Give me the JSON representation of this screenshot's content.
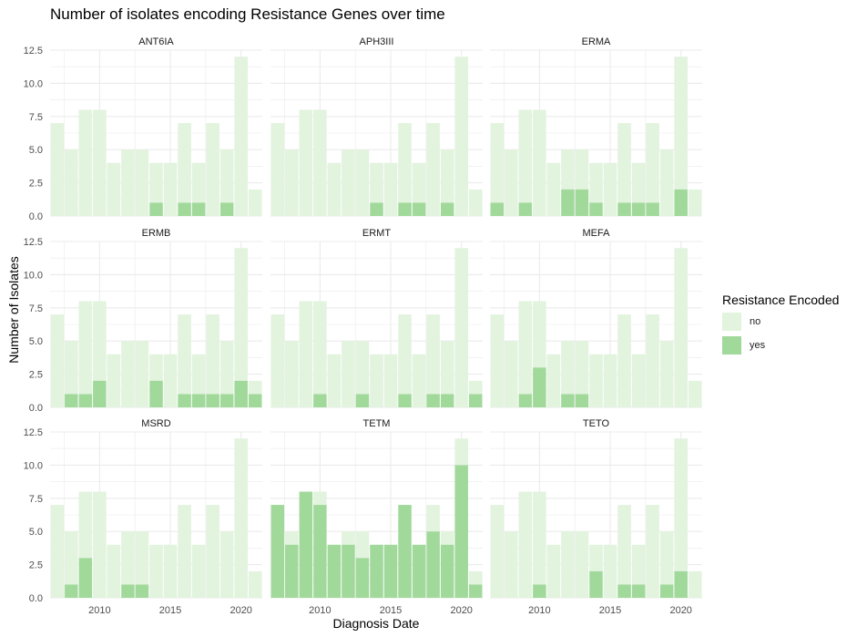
{
  "chart_data": {
    "type": "bar",
    "stacked": true,
    "title": "Number of isolates encoding Resistance Genes over time",
    "xlabel": "Diagnosis Date",
    "ylabel": "Number of Isolates",
    "legend": {
      "title": "Resistance Encoded",
      "entries": [
        "no",
        "yes"
      ],
      "position": "right"
    },
    "colors": {
      "no": "#e2f3de",
      "yes": "#a1d99b",
      "grid": "#ebebeb"
    },
    "x_years": [
      2007,
      2008,
      2009,
      2010,
      2011,
      2012,
      2013,
      2014,
      2015,
      2016,
      2017,
      2018,
      2019,
      2020,
      2021
    ],
    "totals": [
      7,
      5,
      8,
      8,
      4,
      5,
      5,
      4,
      4,
      7,
      4,
      7,
      5,
      12,
      2
    ],
    "xlim": [
      2006.5,
      2021.5
    ],
    "ylim": [
      0,
      12.5
    ],
    "x_ticks": [
      "2010",
      "2015",
      "2020"
    ],
    "y_ticks": [
      "0.0",
      "2.5",
      "5.0",
      "7.5",
      "10.0",
      "12.5"
    ],
    "grid": true,
    "panels": [
      {
        "name": "ANT6IA",
        "yes": [
          0,
          0,
          0,
          0,
          0,
          0,
          0,
          1,
          0,
          1,
          1,
          0,
          1,
          0,
          0
        ]
      },
      {
        "name": "APH3III",
        "yes": [
          0,
          0,
          0,
          0,
          0,
          0,
          0,
          1,
          0,
          1,
          1,
          0,
          1,
          0,
          0
        ]
      },
      {
        "name": "ERMA",
        "yes": [
          1,
          0,
          1,
          0,
          0,
          2,
          2,
          1,
          0,
          1,
          1,
          1,
          0,
          2,
          0
        ]
      },
      {
        "name": "ERMB",
        "yes": [
          0,
          1,
          1,
          2,
          0,
          0,
          0,
          2,
          0,
          1,
          1,
          1,
          1,
          2,
          1
        ]
      },
      {
        "name": "ERMT",
        "yes": [
          0,
          0,
          0,
          1,
          0,
          0,
          1,
          0,
          0,
          1,
          0,
          1,
          1,
          0,
          1
        ]
      },
      {
        "name": "MEFA",
        "yes": [
          0,
          0,
          1,
          3,
          0,
          1,
          1,
          0,
          0,
          0,
          0,
          0,
          0,
          0,
          0
        ]
      },
      {
        "name": "MSRD",
        "yes": [
          0,
          1,
          3,
          0,
          0,
          1,
          1,
          0,
          0,
          0,
          0,
          0,
          0,
          0,
          0
        ]
      },
      {
        "name": "TETM",
        "yes": [
          7,
          4,
          8,
          7,
          4,
          4,
          3,
          4,
          4,
          7,
          4,
          5,
          4,
          10,
          1
        ]
      },
      {
        "name": "TETO",
        "yes": [
          0,
          0,
          0,
          1,
          0,
          0,
          0,
          2,
          0,
          1,
          1,
          0,
          1,
          2,
          0
        ]
      }
    ]
  }
}
